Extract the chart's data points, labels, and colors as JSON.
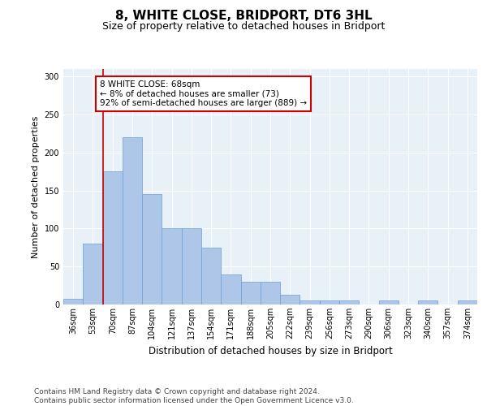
{
  "title": "8, WHITE CLOSE, BRIDPORT, DT6 3HL",
  "subtitle": "Size of property relative to detached houses in Bridport",
  "xlabel": "Distribution of detached houses by size in Bridport",
  "ylabel": "Number of detached properties",
  "categories": [
    "36sqm",
    "53sqm",
    "70sqm",
    "87sqm",
    "104sqm",
    "121sqm",
    "137sqm",
    "154sqm",
    "171sqm",
    "188sqm",
    "205sqm",
    "222sqm",
    "239sqm",
    "256sqm",
    "273sqm",
    "290sqm",
    "306sqm",
    "323sqm",
    "340sqm",
    "357sqm",
    "374sqm"
  ],
  "values": [
    8,
    80,
    175,
    220,
    145,
    100,
    100,
    75,
    40,
    30,
    30,
    13,
    5,
    5,
    5,
    0,
    5,
    0,
    5,
    0,
    5
  ],
  "bar_color": "#aec6e8",
  "bar_edge_color": "#6a9fd4",
  "vline_x_index": 2,
  "vline_color": "#cc0000",
  "annotation_text": "8 WHITE CLOSE: 68sqm\n← 8% of detached houses are smaller (73)\n92% of semi-detached houses are larger (889) →",
  "annotation_box_color": "#ffffff",
  "annotation_box_edge_color": "#cc0000",
  "ylim": [
    0,
    310
  ],
  "yticks": [
    0,
    50,
    100,
    150,
    200,
    250,
    300
  ],
  "footer_text": "Contains HM Land Registry data © Crown copyright and database right 2024.\nContains public sector information licensed under the Open Government Licence v3.0.",
  "background_color": "#e8f0f8",
  "fig_background_color": "#ffffff",
  "title_fontsize": 11,
  "subtitle_fontsize": 9,
  "xlabel_fontsize": 8.5,
  "ylabel_fontsize": 8,
  "tick_fontsize": 7,
  "annotation_fontsize": 7.5,
  "footer_fontsize": 6.5
}
